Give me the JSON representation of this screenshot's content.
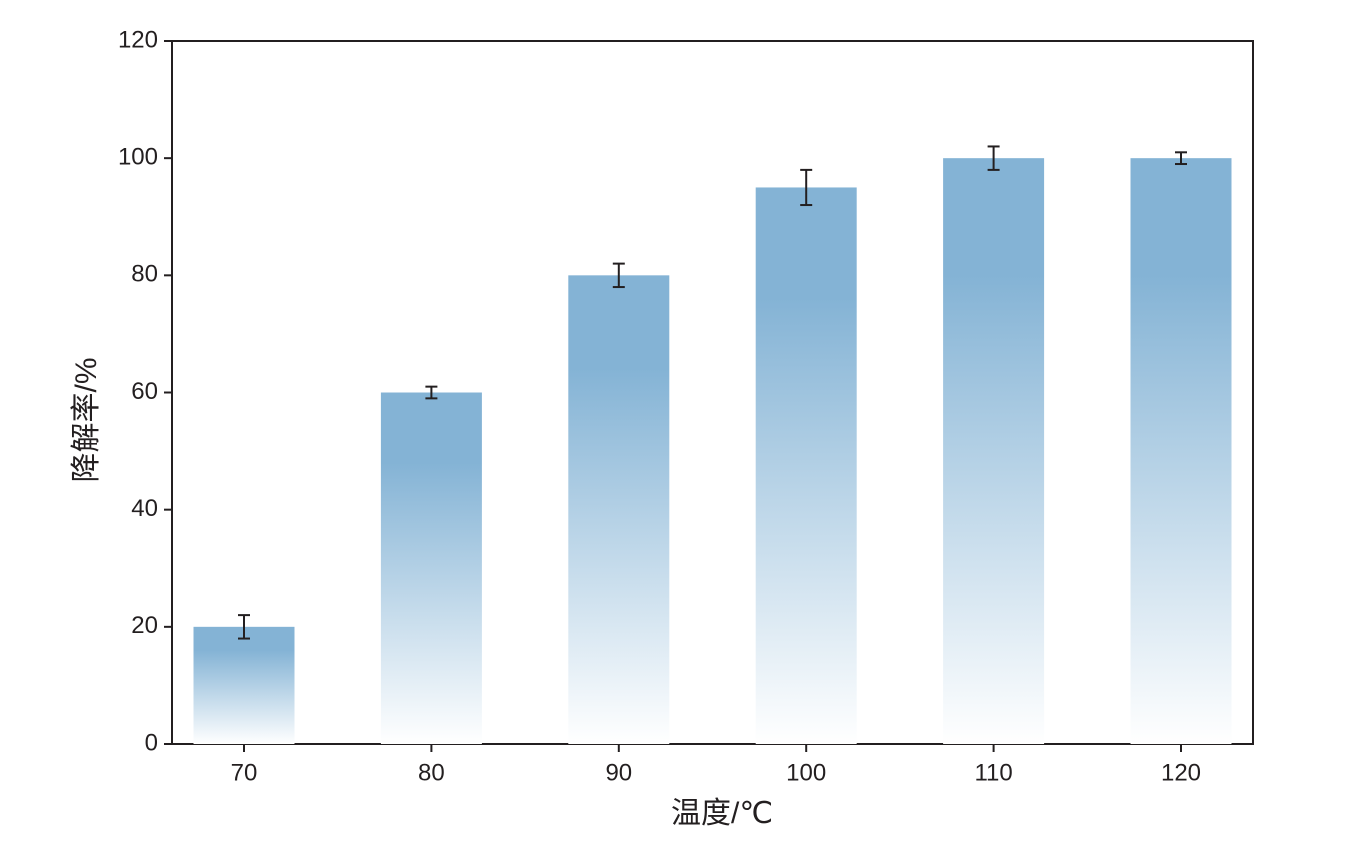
{
  "chart_data": {
    "type": "bar",
    "x_label": "温度/℃",
    "y_label": "降解率/%",
    "categories": [
      "70",
      "80",
      "90",
      "100",
      "110",
      "120"
    ],
    "values": [
      20,
      60,
      80,
      95,
      100,
      100
    ],
    "errors": [
      2,
      1,
      2,
      3,
      2,
      1
    ],
    "color": "#84b3d5",
    "ylim": [
      0,
      120
    ],
    "yticks": [
      0,
      20,
      40,
      60,
      80,
      100,
      120
    ],
    "grid": false
  }
}
